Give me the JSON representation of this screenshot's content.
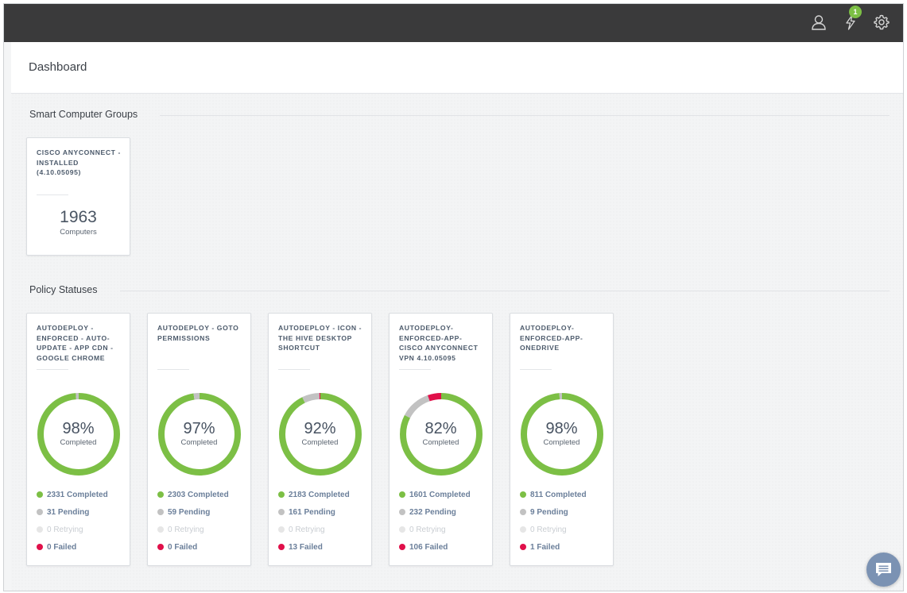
{
  "header": {
    "title": "Dashboard"
  },
  "topbar": {
    "notification_count": "1",
    "icons": [
      "user-icon",
      "lightning-icon",
      "gear-icon"
    ]
  },
  "colors": {
    "completed": "#7cbf45",
    "pending": "#c2c2c2",
    "retrying": "#e6e6e6",
    "failed": "#e0104a"
  },
  "smart_groups": {
    "section_title": "Smart Computer Groups",
    "items": [
      {
        "name": "CISCO ANYCONNECT - INSTALLED (4.10.05095)",
        "count": "1963",
        "label": "Computers"
      }
    ]
  },
  "policy_statuses": {
    "section_title": "Policy Statuses",
    "items": [
      {
        "name": "AUTODEPLOY - ENFORCED - AUTO-UPDATE - APP CDN - GOOGLE CHROME",
        "percent": "98%",
        "percent_label": "Completed",
        "completed": 2331,
        "pending": 31,
        "retrying": 0,
        "failed": 0,
        "completed_text": "2331 Completed",
        "pending_text": "31 Pending",
        "retrying_text": "0 Retrying",
        "failed_text": "0 Failed"
      },
      {
        "name": "AUTODEPLOY - GOTO PERMISSIONS",
        "percent": "97%",
        "percent_label": "Completed",
        "completed": 2303,
        "pending": 59,
        "retrying": 0,
        "failed": 0,
        "completed_text": "2303 Completed",
        "pending_text": "59 Pending",
        "retrying_text": "0 Retrying",
        "failed_text": "0 Failed"
      },
      {
        "name": "AUTODEPLOY - ICON - THE HIVE DESKTOP SHORTCUT",
        "percent": "92%",
        "percent_label": "Completed",
        "completed": 2183,
        "pending": 161,
        "retrying": 0,
        "failed": 13,
        "completed_text": "2183 Completed",
        "pending_text": "161 Pending",
        "retrying_text": "0 Retrying",
        "failed_text": "13 Failed"
      },
      {
        "name": "AUTODEPLOY-ENFORCED-APP-CISCO ANYCONNECT VPN 4.10.05095",
        "percent": "82%",
        "percent_label": "Completed",
        "completed": 1601,
        "pending": 232,
        "retrying": 0,
        "failed": 106,
        "completed_text": "1601 Completed",
        "pending_text": "232 Pending",
        "retrying_text": "0 Retrying",
        "failed_text": "106 Failed"
      },
      {
        "name": "AUTODEPLOY-ENFORCED-APP-ONEDRIVE",
        "percent": "98%",
        "percent_label": "Completed",
        "completed": 811,
        "pending": 9,
        "retrying": 0,
        "failed": 1,
        "completed_text": "811 Completed",
        "pending_text": "9 Pending",
        "retrying_text": "0 Retrying",
        "failed_text": "1 Failed"
      }
    ]
  }
}
